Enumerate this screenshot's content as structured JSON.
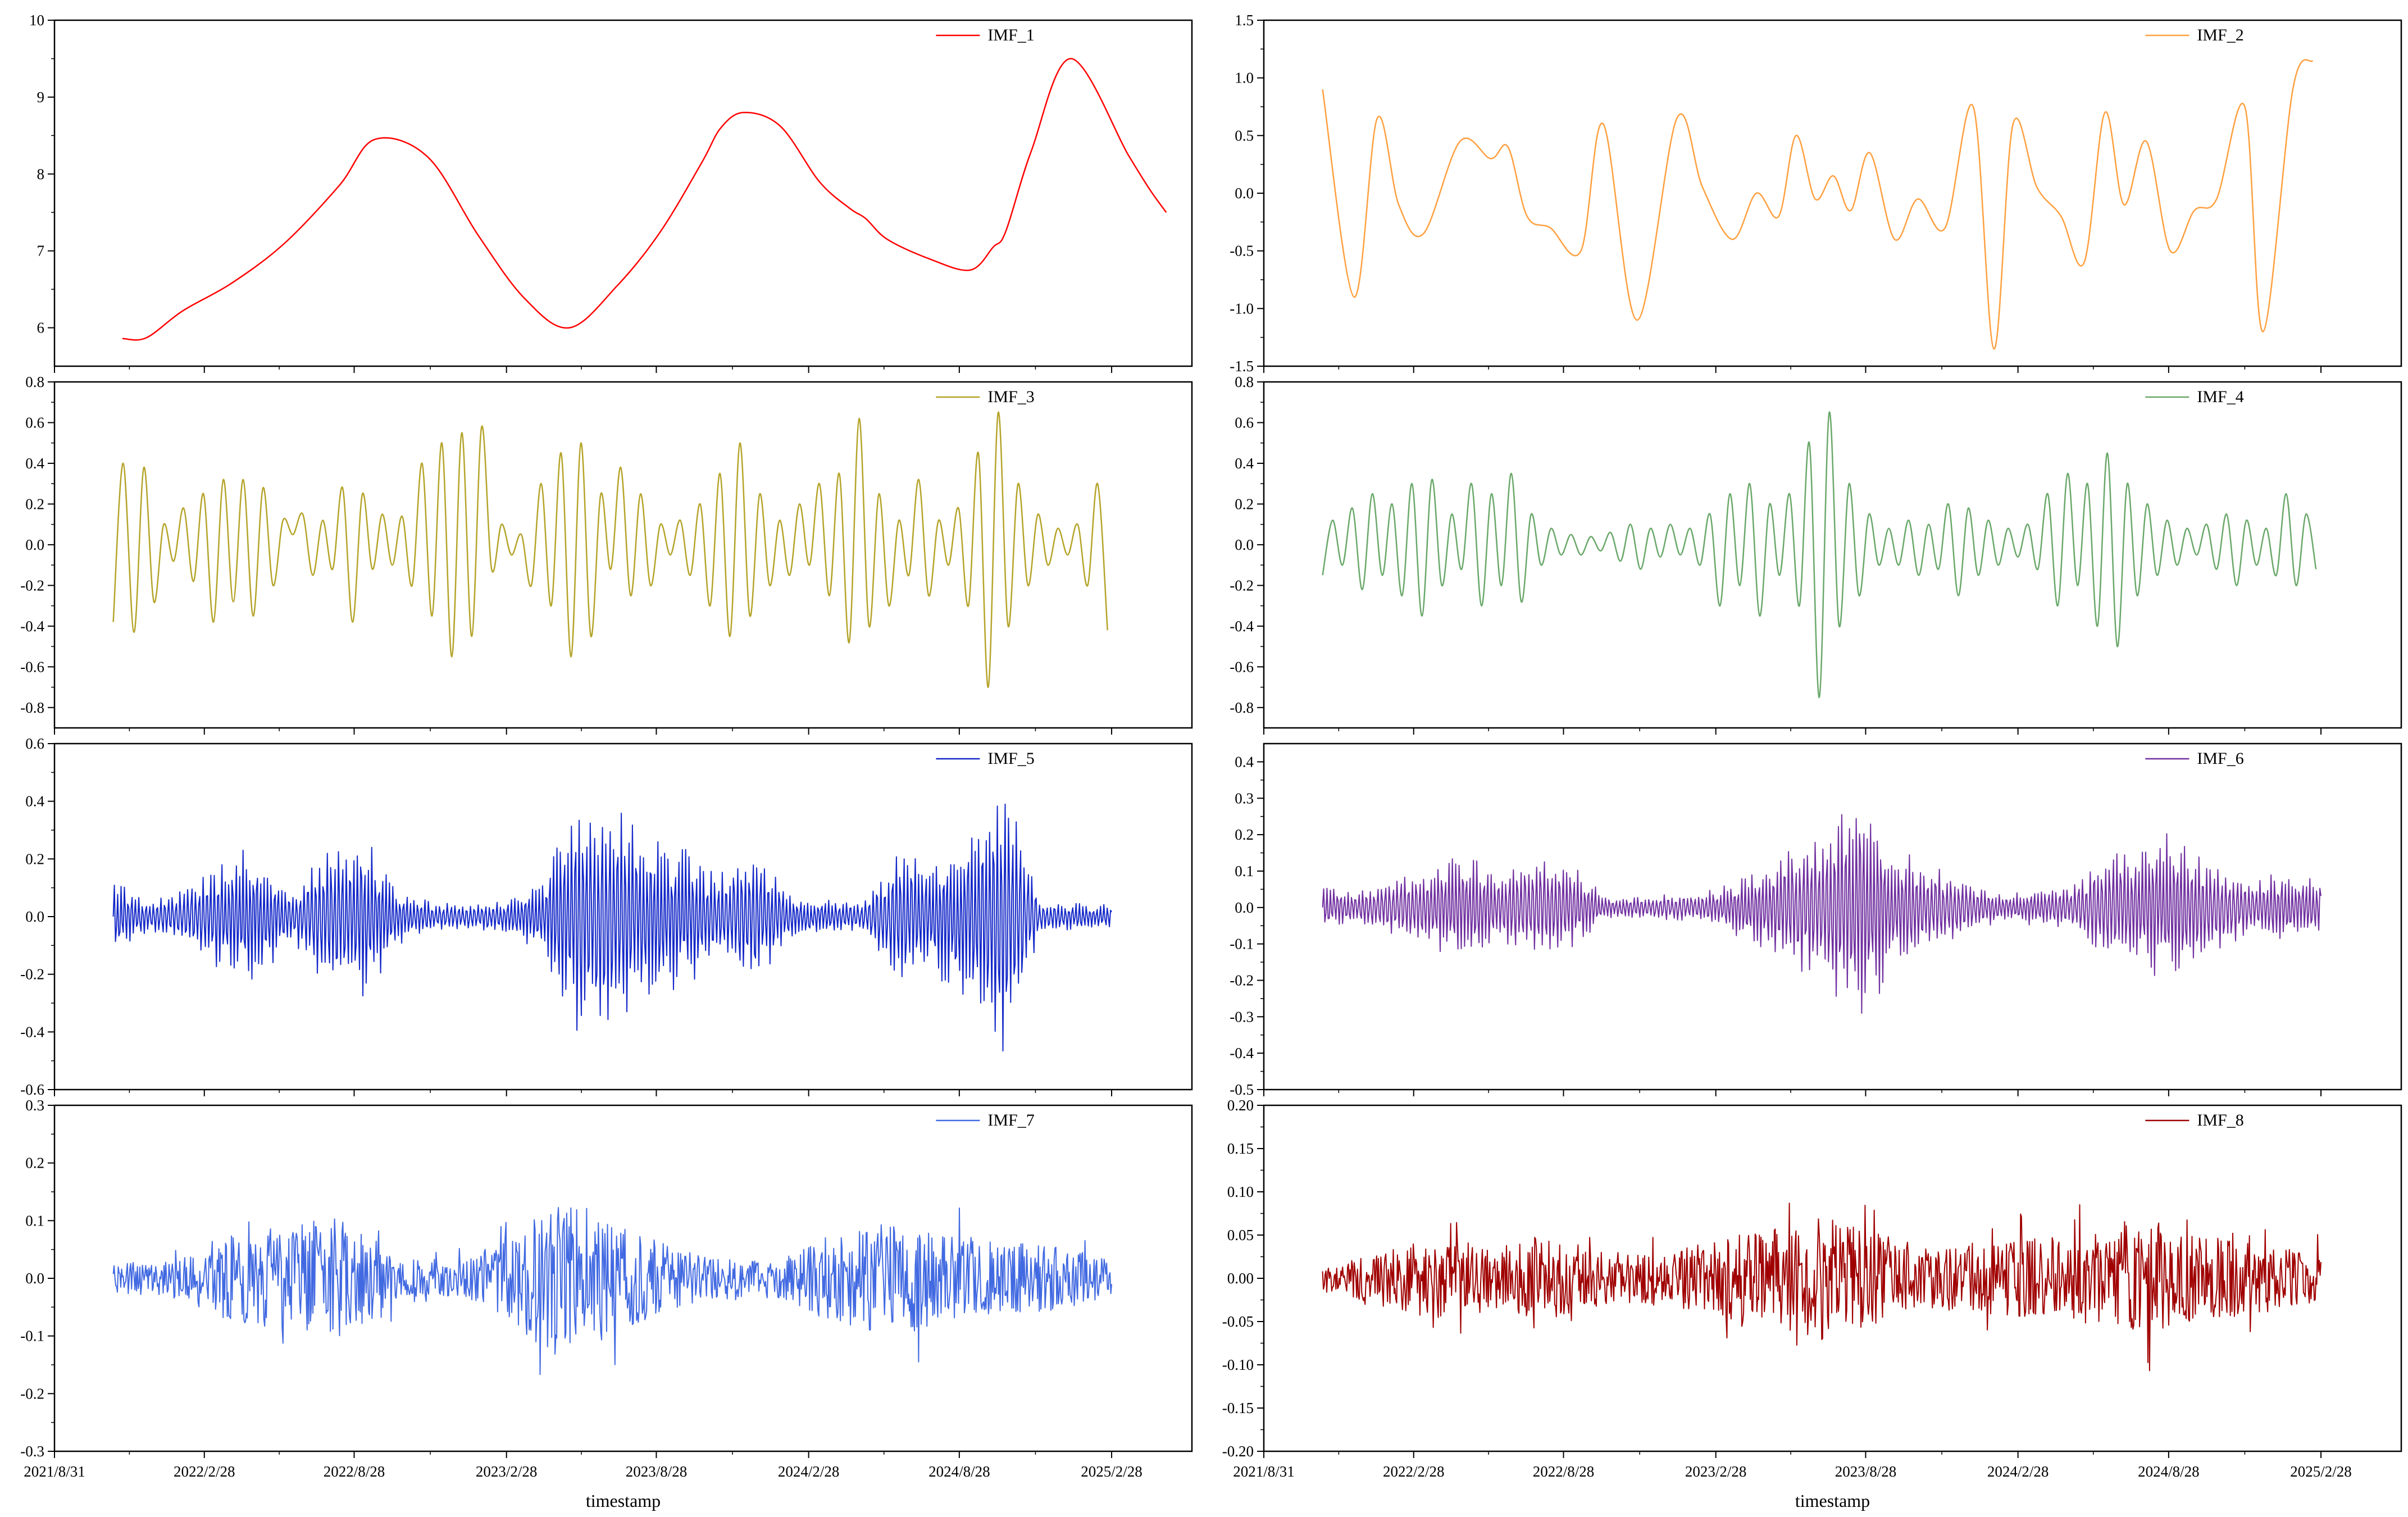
{
  "figure": {
    "x_date_ticks": [
      "2021/8/31",
      "2022/2/28",
      "2022/8/28",
      "2023/2/28",
      "2023/8/28",
      "2024/2/28",
      "2024/8/28",
      "2025/2/28"
    ],
    "xlabel": "timestamp"
  },
  "chart_data": [
    {
      "type": "line",
      "name": "IMF_1",
      "color": "#ff0000",
      "ylim": [
        5.5,
        10
      ],
      "yticks": [
        6,
        7,
        8,
        9,
        10
      ],
      "xlim": [
        "2021/8/31",
        "2025/6/5"
      ],
      "x": [
        "2021/11/21",
        "2021/12/20",
        "2022/2/2",
        "2022/4/2",
        "2022/6/5",
        "2022/8/10",
        "2022/9/22",
        "2022/11/25",
        "2023/1/25",
        "2023/3/22",
        "2023/5/15",
        "2023/7/12",
        "2023/9/2",
        "2023/10/22",
        "2023/11/14",
        "2023/12/12",
        "2024/1/25",
        "2024/3/12",
        "2024/4/18",
        "2024/5/7",
        "2024/6/2",
        "2024/7/22",
        "2024/9/10",
        "2024/10/8",
        "2024/10/23",
        "2024/11/23",
        "2025/1/10",
        "2025/3/20",
        "2025/4/15",
        "2025/5/5"
      ],
      "y": [
        5.86,
        5.87,
        6.22,
        6.58,
        7.1,
        7.85,
        8.45,
        8.22,
        7.2,
        6.38,
        6.0,
        6.55,
        7.25,
        8.15,
        8.6,
        8.8,
        8.62,
        7.9,
        7.55,
        7.42,
        7.15,
        6.9,
        6.75,
        7.05,
        7.25,
        8.3,
        9.5,
        8.25,
        7.8,
        7.5
      ],
      "style": "smooth"
    },
    {
      "type": "line",
      "name": "IMF_2",
      "color": "#ffa040",
      "ylim": [
        -1.5,
        1.5
      ],
      "yticks": [
        -1.5,
        -1.0,
        -0.5,
        0.0,
        0.5,
        1.0,
        1.5
      ],
      "xlim": [
        "2021/8/31",
        "2025/6/5"
      ],
      "x": [
        "2021/11/10",
        "2021/12/18",
        "2022/1/15",
        "2022/2/10",
        "2022/3/12",
        "2022/4/25",
        "2022/6/1",
        "2022/6/22",
        "2022/7/15",
        "2022/8/12",
        "2022/9/18",
        "2022/10/15",
        "2022/11/25",
        "2023/1/12",
        "2023/2/12",
        "2023/3/20",
        "2023/4/18",
        "2023/5/15",
        "2023/6/5",
        "2023/6/28",
        "2023/7/20",
        "2023/8/10",
        "2023/9/2",
        "2023/10/2",
        "2023/10/30",
        "2023/12/2",
        "2024/1/5",
        "2024/1/30",
        "2024/2/22",
        "2024/3/22",
        "2024/4/20",
        "2024/5/18",
        "2024/6/12",
        "2024/7/5",
        "2024/8/1",
        "2024/8/30",
        "2024/9/28",
        "2024/10/25",
        "2024/11/28",
        "2024/12/20",
        "2025/1/25",
        "2025/2/18"
      ],
      "y": [
        0.9,
        -0.9,
        0.65,
        -0.1,
        -0.35,
        0.45,
        0.3,
        0.4,
        -0.2,
        -0.3,
        -0.5,
        0.6,
        -1.1,
        0.65,
        0.05,
        -0.4,
        0.0,
        -0.2,
        0.5,
        -0.05,
        0.15,
        -0.15,
        0.35,
        -0.4,
        -0.05,
        -0.3,
        0.75,
        -1.35,
        0.6,
        0.05,
        -0.2,
        -0.6,
        0.7,
        -0.1,
        0.45,
        -0.5,
        -0.15,
        -0.05,
        0.75,
        -1.2,
        0.9,
        1.15
      ],
      "style": "smooth"
    },
    {
      "type": "line",
      "name": "IMF_3",
      "color": "#b5a42a",
      "ylim": [
        -0.9,
        0.8
      ],
      "yticks": [
        -0.8,
        -0.6,
        -0.4,
        -0.2,
        0.0,
        0.2,
        0.4,
        0.6,
        0.8
      ],
      "xlim": [
        "2021/8/31",
        "2025/6/5"
      ],
      "x": [
        "2021/11/10",
        "2021/11/22",
        "2021/12/5",
        "2021/12/17",
        "2021/12/29",
        "2022/1/10",
        "2022/1/22",
        "2022/2/3",
        "2022/2/15",
        "2022/2/27",
        "2022/3/11",
        "2022/3/23",
        "2022/4/4",
        "2022/4/16",
        "2022/4/28",
        "2022/5/10",
        "2022/5/22",
        "2022/6/3",
        "2022/6/15",
        "2022/6/27",
        "2022/7/9",
        "2022/7/21",
        "2022/8/2",
        "2022/8/14",
        "2022/8/26",
        "2022/9/7",
        "2022/9/19",
        "2022/10/1",
        "2022/10/13",
        "2022/10/25",
        "2022/11/6",
        "2022/11/18",
        "2022/11/30",
        "2022/12/12",
        "2022/12/24",
        "2023/1/5",
        "2023/1/17",
        "2023/1/29",
        "2023/2/10",
        "2023/2/22",
        "2023/3/6",
        "2023/3/18",
        "2023/3/30",
        "2023/4/11",
        "2023/4/23",
        "2023/5/5",
        "2023/5/17",
        "2023/5/29",
        "2023/6/10",
        "2023/6/22",
        "2023/7/4",
        "2023/7/16",
        "2023/7/28",
        "2023/8/9",
        "2023/8/21",
        "2023/9/2",
        "2023/9/14",
        "2023/9/26",
        "2023/10/8",
        "2023/10/20",
        "2023/11/1",
        "2023/11/13",
        "2023/11/25",
        "2023/12/7",
        "2023/12/19",
        "2023/12/31",
        "2024/1/12",
        "2024/1/24",
        "2024/2/5",
        "2024/2/17",
        "2024/2/29",
        "2024/3/12",
        "2024/3/24",
        "2024/4/5",
        "2024/4/17",
        "2024/4/29",
        "2024/5/11",
        "2024/5/23",
        "2024/6/4",
        "2024/6/16",
        "2024/6/28",
        "2024/7/10",
        "2024/7/22",
        "2024/8/3",
        "2024/8/15",
        "2024/8/27",
        "2024/9/8",
        "2024/9/20",
        "2024/10/2",
        "2024/10/14",
        "2024/10/26",
        "2024/11/7",
        "2024/11/19",
        "2024/12/1",
        "2024/12/13",
        "2024/12/25",
        "2025/1/6",
        "2025/1/18",
        "2025/1/30",
        "2025/2/11",
        "2025/2/23"
      ],
      "y": [
        -0.38,
        0.4,
        -0.43,
        0.38,
        -0.28,
        0.1,
        -0.08,
        0.18,
        -0.18,
        0.25,
        -0.38,
        0.32,
        -0.28,
        0.32,
        -0.35,
        0.28,
        -0.2,
        0.12,
        0.05,
        0.15,
        -0.15,
        0.12,
        -0.12,
        0.28,
        -0.38,
        0.25,
        -0.12,
        0.15,
        -0.1,
        0.14,
        -0.2,
        0.4,
        -0.35,
        0.5,
        -0.55,
        0.55,
        -0.45,
        0.58,
        -0.12,
        0.1,
        -0.05,
        0.05,
        -0.2,
        0.3,
        -0.3,
        0.45,
        -0.55,
        0.5,
        -0.45,
        0.25,
        -0.12,
        0.38,
        -0.25,
        0.25,
        -0.2,
        0.1,
        -0.05,
        0.12,
        -0.15,
        0.2,
        -0.3,
        0.35,
        -0.45,
        0.5,
        -0.35,
        0.25,
        -0.2,
        0.12,
        -0.15,
        0.2,
        -0.1,
        0.3,
        -0.25,
        0.35,
        -0.48,
        0.62,
        -0.4,
        0.25,
        -0.3,
        0.12,
        -0.15,
        0.32,
        -0.25,
        0.12,
        -0.1,
        0.18,
        -0.3,
        0.45,
        -0.7,
        0.65,
        -0.4,
        0.3,
        -0.2,
        0.15,
        -0.1,
        0.08,
        -0.05,
        0.1,
        -0.2,
        0.3,
        -0.42
      ],
      "style": "smooth"
    },
    {
      "type": "line",
      "name": "IMF_4",
      "color": "#6aa86a",
      "ylim": [
        -0.9,
        0.8
      ],
      "yticks": [
        -0.8,
        -0.6,
        -0.4,
        -0.2,
        0.0,
        0.2,
        0.4,
        0.6,
        0.8
      ],
      "xlim": [
        "2021/8/31",
        "2025/6/5"
      ],
      "x": [
        "2021/11/10",
        "2021/11/22",
        "2021/12/4",
        "2021/12/16",
        "2021/12/28",
        "2022/1/9",
        "2022/1/21",
        "2022/2/2",
        "2022/2/14",
        "2022/2/26",
        "2022/3/10",
        "2022/3/22",
        "2022/4/3",
        "2022/4/15",
        "2022/4/27",
        "2022/5/9",
        "2022/5/21",
        "2022/6/2",
        "2022/6/14",
        "2022/6/26",
        "2022/7/8",
        "2022/7/20",
        "2022/8/1",
        "2022/8/13",
        "2022/8/25",
        "2022/9/6",
        "2022/9/18",
        "2022/9/30",
        "2022/10/12",
        "2022/10/24",
        "2022/11/5",
        "2022/11/17",
        "2022/11/29",
        "2022/12/11",
        "2022/12/23",
        "2023/1/4",
        "2023/1/16",
        "2023/1/28",
        "2023/2/9",
        "2023/2/21",
        "2023/3/5",
        "2023/3/17",
        "2023/3/29",
        "2023/4/10",
        "2023/4/22",
        "2023/5/4",
        "2023/5/16",
        "2023/5/28",
        "2023/6/9",
        "2023/6/21",
        "2023/7/3",
        "2023/7/15",
        "2023/7/27",
        "2023/8/8",
        "2023/8/20",
        "2023/9/1",
        "2023/9/13",
        "2023/9/25",
        "2023/10/7",
        "2023/10/19",
        "2023/10/31",
        "2023/11/12",
        "2023/11/24",
        "2023/12/6",
        "2023/12/18",
        "2023/12/30",
        "2024/1/11",
        "2024/1/23",
        "2024/2/4",
        "2024/2/16",
        "2024/2/28",
        "2024/3/11",
        "2024/3/23",
        "2024/4/4",
        "2024/4/16",
        "2024/4/28",
        "2024/5/10",
        "2024/5/22",
        "2024/6/3",
        "2024/6/15",
        "2024/6/27",
        "2024/7/9",
        "2024/7/21",
        "2024/8/2",
        "2024/8/14",
        "2024/8/26",
        "2024/9/7",
        "2024/9/19",
        "2024/10/1",
        "2024/10/13",
        "2024/10/25",
        "2024/11/6",
        "2024/11/18",
        "2024/11/30",
        "2024/12/12",
        "2024/12/24",
        "2025/1/5",
        "2025/1/17",
        "2025/1/29",
        "2025/2/10",
        "2025/2/22"
      ],
      "y": [
        -0.15,
        0.12,
        -0.1,
        0.18,
        -0.22,
        0.25,
        -0.15,
        0.2,
        -0.25,
        0.3,
        -0.35,
        0.32,
        -0.2,
        0.15,
        -0.12,
        0.3,
        -0.3,
        0.25,
        -0.2,
        0.35,
        -0.28,
        0.15,
        -0.1,
        0.08,
        -0.05,
        0.05,
        -0.05,
        0.04,
        -0.03,
        0.06,
        -0.08,
        0.1,
        -0.12,
        0.08,
        -0.06,
        0.1,
        -0.05,
        0.08,
        -0.1,
        0.15,
        -0.3,
        0.25,
        -0.2,
        0.3,
        -0.35,
        0.2,
        -0.15,
        0.25,
        -0.3,
        0.5,
        -0.75,
        0.65,
        -0.4,
        0.3,
        -0.25,
        0.15,
        -0.1,
        0.08,
        -0.1,
        0.12,
        -0.15,
        0.1,
        -0.12,
        0.2,
        -0.25,
        0.18,
        -0.15,
        0.12,
        -0.1,
        0.08,
        -0.06,
        0.1,
        -0.12,
        0.25,
        -0.3,
        0.35,
        -0.2,
        0.3,
        -0.4,
        0.45,
        -0.5,
        0.3,
        -0.25,
        0.2,
        -0.15,
        0.12,
        -0.1,
        0.08,
        -0.05,
        0.1,
        -0.12,
        0.15,
        -0.2,
        0.12,
        -0.1,
        0.08,
        -0.15,
        0.25,
        -0.2,
        0.15,
        -0.12
      ],
      "style": "smooth"
    },
    {
      "type": "line",
      "name": "IMF_5",
      "color": "#1428c8",
      "ylim": [
        -0.6,
        0.6
      ],
      "yticks": [
        -0.6,
        -0.4,
        -0.2,
        0.0,
        0.2,
        0.4,
        0.6
      ],
      "xlim": [
        "2021/8/31",
        "2025/6/5"
      ],
      "x_start": "2021/11/10",
      "x_end": "2025/2/28",
      "envelope": [
        0.15,
        0.05,
        0.1,
        0.2,
        0.25,
        0.08,
        0.25,
        0.3,
        0.1,
        0.05,
        0.05,
        0.06,
        0.12,
        0.45,
        0.38,
        0.3,
        0.25,
        0.15,
        0.25,
        0.08,
        0.06,
        0.05,
        0.25,
        0.2,
        0.32,
        0.5,
        0.05,
        0.05,
        0.04
      ],
      "style": "oscillation"
    },
    {
      "type": "line",
      "name": "IMF_6",
      "color": "#7030a0",
      "ylim": [
        -0.5,
        0.45
      ],
      "yticks": [
        -0.5,
        -0.4,
        -0.3,
        -0.2,
        -0.1,
        0.0,
        0.1,
        0.2,
        0.3,
        0.4
      ],
      "xlim": [
        "2021/8/31",
        "2025/6/5"
      ],
      "x_start": "2021/11/10",
      "x_end": "2025/2/28",
      "envelope": [
        0.06,
        0.05,
        0.08,
        0.12,
        0.15,
        0.1,
        0.15,
        0.12,
        0.03,
        0.03,
        0.04,
        0.05,
        0.1,
        0.16,
        0.2,
        0.35,
        0.18,
        0.12,
        0.08,
        0.04,
        0.05,
        0.06,
        0.15,
        0.18,
        0.22,
        0.12,
        0.08,
        0.1,
        0.08
      ],
      "style": "oscillation"
    },
    {
      "type": "line",
      "name": "IMF_7",
      "color": "#4169e1",
      "ylim": [
        -0.3,
        0.3
      ],
      "yticks": [
        -0.3,
        -0.2,
        -0.1,
        0.0,
        0.1,
        0.2,
        0.3
      ],
      "xlim": [
        "2021/8/31",
        "2025/6/5"
      ],
      "x_start": "2021/11/10",
      "x_end": "2025/2/28",
      "envelope": [
        0.04,
        0.05,
        0.06,
        0.12,
        0.14,
        0.15,
        0.18,
        0.14,
        0.06,
        0.05,
        0.06,
        0.12,
        0.2,
        0.22,
        0.16,
        0.12,
        0.08,
        0.06,
        0.05,
        0.07,
        0.12,
        0.15,
        0.16,
        0.14,
        0.12,
        0.1,
        0.1,
        0.08,
        0.05
      ],
      "style": "noise"
    },
    {
      "type": "line",
      "name": "IMF_8",
      "color": "#a00000",
      "ylim": [
        -0.2,
        0.2
      ],
      "yticks": [
        -0.2,
        -0.15,
        -0.1,
        -0.05,
        0.0,
        0.05,
        0.1,
        0.15,
        0.2
      ],
      "xlim": [
        "2021/8/31",
        "2025/6/5"
      ],
      "x_start": "2021/11/10",
      "x_end": "2025/2/28",
      "envelope": [
        0.03,
        0.04,
        0.06,
        0.08,
        0.07,
        0.06,
        0.08,
        0.07,
        0.05,
        0.05,
        0.06,
        0.07,
        0.09,
        0.1,
        0.12,
        0.1,
        0.08,
        0.06,
        0.07,
        0.07,
        0.08,
        0.09,
        0.1,
        0.12,
        0.09,
        0.08,
        0.07,
        0.06,
        0.05
      ],
      "style": "noise"
    }
  ]
}
